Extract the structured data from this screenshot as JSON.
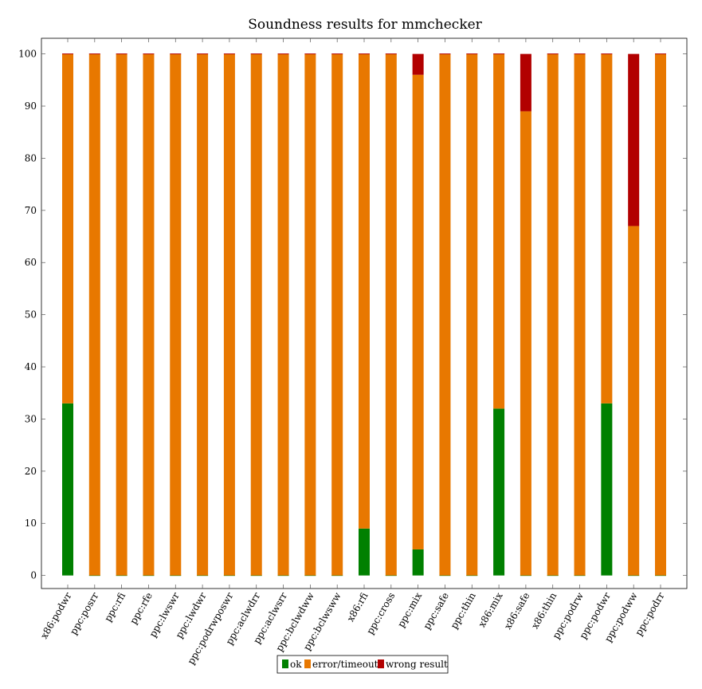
{
  "chart_data": {
    "type": "bar",
    "stacked": true,
    "title": "Soundness results for mmchecker",
    "xlabel": "",
    "ylabel": "",
    "ylim": [
      -2.5,
      103
    ],
    "yticks": [
      0,
      10,
      20,
      30,
      40,
      50,
      60,
      70,
      80,
      90,
      100
    ],
    "grid": false,
    "legend_position": "bottom-center",
    "categories": [
      "x86:podwr",
      "ppc:posrr",
      "ppc:rfi",
      "ppc:rfe",
      "ppc:lwswr",
      "ppc:lwdwr",
      "ppc:podrwposwr",
      "ppc:aclwdrr",
      "ppc:aclwsrr",
      "ppc:bclwdww",
      "ppc:bclwsww",
      "x86:rfi",
      "ppc:cross",
      "ppc:mix",
      "ppc:safe",
      "ppc:thin",
      "x86:mix",
      "x86:safe",
      "x86:thin",
      "ppc:podrw",
      "ppc:podwr",
      "ppc:podww",
      "ppc:podrr"
    ],
    "series": [
      {
        "name": "ok",
        "color": "#008000",
        "values": [
          33,
          0,
          0,
          0,
          0,
          0,
          0,
          0,
          0,
          0,
          0,
          9,
          0,
          5,
          0,
          0,
          32,
          0,
          0,
          0,
          33,
          0,
          0
        ]
      },
      {
        "name": "error/timeout",
        "color": "#e87800",
        "values": [
          67,
          100,
          100,
          100,
          100,
          100,
          100,
          100,
          100,
          100,
          100,
          91,
          100,
          91,
          100,
          100,
          68,
          89,
          100,
          100,
          67,
          67,
          100
        ]
      },
      {
        "name": "wrong result",
        "color": "#b20000",
        "values": [
          0,
          0,
          0,
          0,
          0,
          0,
          0,
          0,
          0,
          0,
          0,
          0,
          0,
          4,
          0,
          0,
          0,
          11,
          0,
          0,
          0,
          33,
          0
        ]
      }
    ]
  }
}
